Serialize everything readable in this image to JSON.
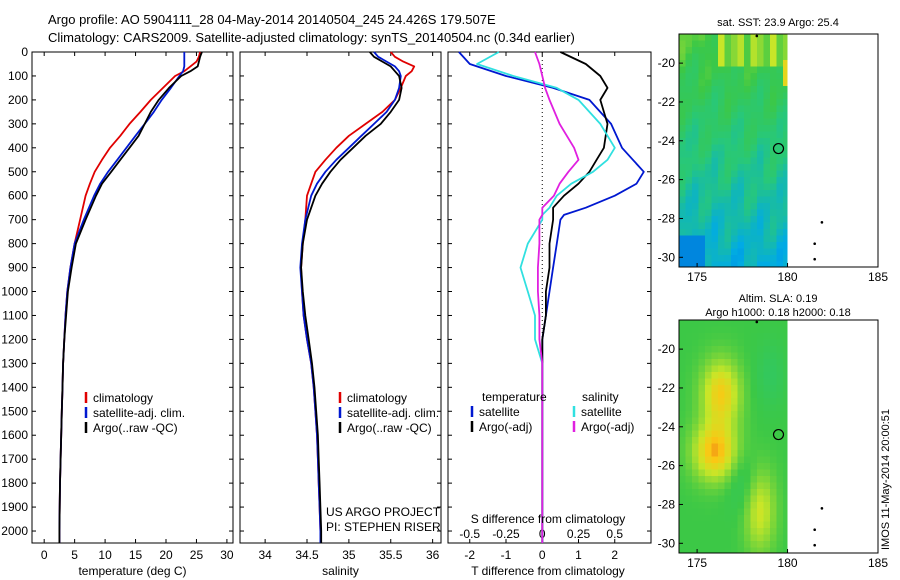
{
  "header": {
    "line1": "Argo profile: AO 5904111_28 04-May-2014 20140504_245 24.426S 179.507E",
    "line2": "Climatology: CARS2009. Satellite-adjusted climatology: synTS_20140504.nc (0.34d earlier)"
  },
  "depth_axis": {
    "min": 0,
    "max": 2050,
    "ticks": [
      0,
      100,
      200,
      300,
      400,
      500,
      600,
      700,
      800,
      900,
      1000,
      1100,
      1200,
      1300,
      1400,
      1500,
      1600,
      1700,
      1800,
      1900,
      2000
    ]
  },
  "colors": {
    "climatology": "#e00000",
    "satellite": "#0018d0",
    "argo": "#000000",
    "sal_satellite": "#30e0e0",
    "sal_argo": "#e020e0"
  },
  "chart_data": [
    {
      "type": "line",
      "name": "temperature",
      "xlabel": "temperature (deg C)",
      "xlim": [
        -2,
        31
      ],
      "xticks": [
        0,
        5,
        10,
        15,
        20,
        25,
        30
      ],
      "legend": [
        "climatology",
        "satellite-adj. clim.",
        "Argo(..raw -QC)"
      ],
      "series": [
        {
          "name": "climatology",
          "color": "#e00000",
          "x": [
            25.6,
            25.4,
            25.0,
            24.0,
            23.0,
            21.5,
            19.5,
            17.5,
            15.8,
            14.0,
            12.5,
            10.8,
            9.5,
            8.3,
            7.5,
            6.8,
            5.9,
            5.0,
            4.3,
            3.8,
            3.5,
            3.3,
            3.1,
            3.0,
            2.9,
            2.8,
            2.7,
            2.6,
            2.55,
            2.5,
            2.5
          ],
          "y": [
            0,
            20,
            40,
            60,
            80,
            100,
            150,
            200,
            250,
            300,
            350,
            400,
            450,
            500,
            550,
            600,
            700,
            800,
            900,
            1000,
            1100,
            1200,
            1300,
            1400,
            1500,
            1600,
            1700,
            1800,
            1900,
            2000,
            2050
          ]
        },
        {
          "name": "satellite-adj. clim.",
          "color": "#0018d0",
          "x": [
            23.0,
            23.0,
            23.0,
            23.0,
            22.8,
            22.2,
            20.8,
            19.3,
            18.0,
            16.5,
            15.0,
            13.5,
            12.0,
            10.5,
            9.2,
            8.2,
            6.5,
            5.0,
            4.3,
            3.8,
            3.5,
            3.3,
            3.1,
            3.0,
            2.9,
            2.8,
            2.7,
            2.6,
            2.55,
            2.5,
            2.5
          ],
          "y": [
            0,
            20,
            40,
            60,
            80,
            100,
            150,
            200,
            250,
            300,
            350,
            400,
            450,
            500,
            550,
            600,
            700,
            800,
            900,
            1000,
            1100,
            1200,
            1300,
            1400,
            1500,
            1600,
            1700,
            1800,
            1900,
            2000,
            2050
          ]
        },
        {
          "name": "Argo(..raw -QC)",
          "color": "#000000",
          "x": [
            25.9,
            25.6,
            25.4,
            25.2,
            24.0,
            22.5,
            20.5,
            18.8,
            17.5,
            16.5,
            15.5,
            14.0,
            12.5,
            11.0,
            9.5,
            8.5,
            6.8,
            5.2,
            4.5,
            3.9,
            3.6,
            3.3,
            3.1,
            3.0,
            2.9,
            2.8,
            2.7,
            2.6,
            2.55,
            2.5,
            2.5
          ],
          "y": [
            0,
            20,
            40,
            60,
            80,
            100,
            150,
            200,
            250,
            300,
            350,
            400,
            450,
            500,
            550,
            600,
            700,
            800,
            900,
            1000,
            1100,
            1200,
            1300,
            1400,
            1500,
            1600,
            1700,
            1800,
            1900,
            2000,
            2050
          ]
        }
      ]
    },
    {
      "type": "line",
      "name": "salinity",
      "xlabel": "salinity",
      "xlim": [
        33.7,
        36.1
      ],
      "xticks": [
        34,
        34.5,
        35,
        35.5,
        36
      ],
      "legend": [
        "climatology",
        "satellite-adj. clim.",
        "Argo(..raw -QC)"
      ],
      "footer": [
        "US ARGO PROJECT",
        "PI: STEPHEN RISER"
      ],
      "series": [
        {
          "name": "climatology",
          "color": "#e00000",
          "x": [
            35.5,
            35.55,
            35.65,
            35.78,
            35.75,
            35.68,
            35.62,
            35.55,
            35.4,
            35.2,
            35.0,
            34.85,
            34.72,
            34.6,
            34.55,
            34.5,
            34.48,
            34.45,
            34.43,
            34.44,
            34.46,
            34.5,
            34.55,
            34.58,
            34.6,
            34.62,
            34.63,
            34.64,
            34.65,
            34.66,
            34.66
          ],
          "y": [
            0,
            20,
            40,
            60,
            80,
            100,
            150,
            200,
            250,
            300,
            350,
            400,
            450,
            500,
            550,
            600,
            700,
            800,
            900,
            1000,
            1100,
            1200,
            1300,
            1400,
            1500,
            1600,
            1700,
            1800,
            1900,
            2000,
            2050
          ]
        },
        {
          "name": "satellite-adj. clim.",
          "color": "#0018d0",
          "x": [
            35.3,
            35.35,
            35.45,
            35.55,
            35.6,
            35.62,
            35.6,
            35.55,
            35.45,
            35.3,
            35.15,
            35.0,
            34.85,
            34.72,
            34.62,
            34.55,
            34.48,
            34.44,
            34.42,
            34.44,
            34.46,
            34.5,
            34.55,
            34.58,
            34.6,
            34.62,
            34.63,
            34.64,
            34.65,
            34.66,
            34.66
          ],
          "y": [
            0,
            20,
            40,
            60,
            80,
            100,
            150,
            200,
            250,
            300,
            350,
            400,
            450,
            500,
            550,
            600,
            700,
            800,
            900,
            1000,
            1100,
            1200,
            1300,
            1400,
            1500,
            1600,
            1700,
            1800,
            1900,
            2000,
            2050
          ]
        },
        {
          "name": "Argo(..raw -QC)",
          "color": "#000000",
          "x": [
            35.25,
            35.3,
            35.4,
            35.5,
            35.55,
            35.6,
            35.63,
            35.6,
            35.5,
            35.38,
            35.2,
            35.05,
            34.9,
            34.78,
            34.68,
            34.6,
            34.5,
            34.45,
            34.43,
            34.45,
            34.48,
            34.52,
            34.56,
            34.59,
            34.61,
            34.63,
            34.64,
            34.65,
            34.66,
            34.67,
            34.67
          ],
          "y": [
            0,
            20,
            40,
            60,
            80,
            100,
            150,
            200,
            250,
            300,
            350,
            400,
            450,
            500,
            550,
            600,
            700,
            800,
            900,
            1000,
            1100,
            1200,
            1300,
            1400,
            1500,
            1600,
            1700,
            1800,
            1900,
            2000,
            2050
          ]
        }
      ]
    },
    {
      "type": "line",
      "name": "difference",
      "xlabel_top": "S difference from climatology",
      "xlabel": "T difference from climatology",
      "xlim": [
        -2.6,
        3.0
      ],
      "xticks_T": [
        -2,
        -1,
        0,
        1,
        2
      ],
      "xticks_S": [
        -0.5,
        -0.25,
        0,
        0.25,
        0.5
      ],
      "xticks_S_labels": [
        "-0.5",
        "-0.25",
        "0",
        "0.25",
        "0.5"
      ],
      "legend_titles": [
        "temperature",
        "salinity"
      ],
      "legend": [
        "satellite",
        "Argo(-adj)",
        "satellite",
        "Argo(-adj)"
      ],
      "series": [
        {
          "name": "T satellite",
          "color": "#0018d0",
          "x": [
            -2.3,
            -2.0,
            -1.0,
            0.3,
            1.3,
            1.9,
            2.2,
            2.5,
            2.8,
            2.6,
            2.0,
            1.2,
            0.6,
            0.5,
            0.4,
            0.3,
            0.2,
            0.1,
            0.0,
            0.0,
            0.0,
            0.0,
            0.0,
            0.0
          ],
          "y": [
            0,
            50,
            100,
            150,
            200,
            300,
            400,
            450,
            500,
            550,
            600,
            650,
            680,
            700,
            800,
            900,
            1000,
            1100,
            1200,
            1300,
            1500,
            1700,
            1900,
            2050
          ]
        },
        {
          "name": "T Argo(-adj)",
          "color": "#000000",
          "x": [
            0.5,
            1.2,
            1.6,
            1.8,
            1.6,
            1.8,
            1.7,
            1.5,
            1.3,
            1.0,
            0.6,
            0.3,
            0.3,
            0.3,
            0.2,
            0.2,
            0.1,
            0.1,
            0.0,
            0.0,
            0.0,
            0.0,
            0.0,
            0.0
          ],
          "y": [
            0,
            50,
            100,
            150,
            200,
            300,
            400,
            450,
            500,
            550,
            600,
            650,
            680,
            700,
            800,
            900,
            1000,
            1100,
            1200,
            1300,
            1500,
            1700,
            1900,
            2050
          ]
        },
        {
          "name": "S satellite",
          "color": "#30e0e0",
          "x": [
            -0.3,
            -0.45,
            -0.2,
            0.1,
            0.25,
            0.4,
            0.5,
            0.45,
            0.35,
            0.2,
            0.1,
            0.05,
            0.0,
            0.0,
            -0.1,
            -0.15,
            -0.1,
            -0.05,
            -0.05,
            0.0,
            0.0,
            0.0,
            0.0,
            0.0
          ],
          "y": [
            0,
            50,
            100,
            150,
            200,
            300,
            400,
            450,
            500,
            550,
            600,
            650,
            680,
            700,
            800,
            900,
            1000,
            1100,
            1200,
            1300,
            1500,
            1700,
            1900,
            2050
          ]
        },
        {
          "name": "S Argo(-adj)",
          "color": "#e020e0",
          "x": [
            -0.05,
            -0.02,
            0.0,
            0.02,
            0.05,
            0.12,
            0.22,
            0.25,
            0.18,
            0.12,
            0.08,
            0.0,
            0.0,
            -0.02,
            -0.02,
            -0.03,
            -0.03,
            -0.02,
            -0.02,
            0.0,
            0.0,
            0.0,
            0.0,
            0.0
          ],
          "y": [
            0,
            50,
            100,
            150,
            200,
            300,
            400,
            450,
            500,
            550,
            600,
            650,
            680,
            700,
            800,
            900,
            1000,
            1100,
            1200,
            1300,
            1500,
            1700,
            1900,
            2050
          ]
        }
      ]
    },
    {
      "type": "heatmap",
      "name": "sst-map",
      "title": "sat. SST: 23.9  Argo: 25.4",
      "xlim": [
        174,
        185
      ],
      "ylim": [
        -30.5,
        -18.5
      ],
      "xticks": [
        175,
        180,
        185
      ],
      "yticks": [
        -20,
        -22,
        -24,
        -26,
        -28,
        -30
      ],
      "marker": {
        "lon": 179.5,
        "lat": -24.4
      }
    },
    {
      "type": "heatmap",
      "name": "sla-map",
      "title_line1": "Altim. SLA: 0.19",
      "title_line2": "Argo h1000: 0.18  h2000: 0.18",
      "xlim": [
        174,
        185
      ],
      "ylim": [
        -30.5,
        -18.5
      ],
      "xticks": [
        175,
        180,
        185
      ],
      "yticks": [
        -20,
        -22,
        -24,
        -26,
        -28,
        -30
      ],
      "marker": {
        "lon": 179.5,
        "lat": -24.4
      }
    }
  ],
  "side_stamp": "IMOS 11-May-2014 20:00:51"
}
